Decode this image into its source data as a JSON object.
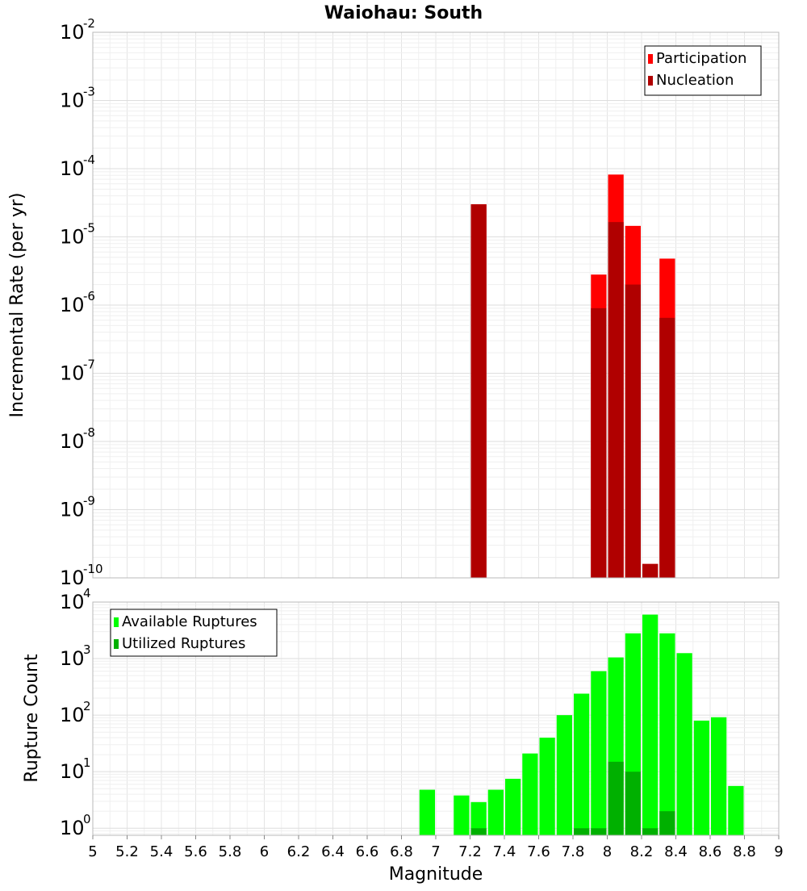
{
  "chart_data": [
    {
      "type": "bar",
      "title": "Waiohau: South",
      "xlabel": "",
      "ylabel": "Incremental Rate (per yr)",
      "yscale": "log",
      "ylim": [
        1e-10,
        0.01
      ],
      "xlim": [
        5,
        9
      ],
      "grid": true,
      "legend_position": "top-right",
      "series": [
        {
          "name": "Participation",
          "color": "#ff0000",
          "bars": [
            {
              "x": 7.25,
              "y": 3e-05
            },
            {
              "x": 7.95,
              "y": 2.8e-06
            },
            {
              "x": 8.05,
              "y": 8.2e-05
            },
            {
              "x": 8.15,
              "y": 1.45e-05
            },
            {
              "x": 8.25,
              "y": 1.6e-10
            },
            {
              "x": 8.35,
              "y": 4.8e-06
            }
          ]
        },
        {
          "name": "Nucleation",
          "color": "#b00000",
          "bars": [
            {
              "x": 7.25,
              "y": 3e-05
            },
            {
              "x": 7.95,
              "y": 9e-07
            },
            {
              "x": 8.05,
              "y": 1.65e-05
            },
            {
              "x": 8.15,
              "y": 2e-06
            },
            {
              "x": 8.25,
              "y": 1.6e-10
            },
            {
              "x": 8.35,
              "y": 6.5e-07
            }
          ]
        }
      ],
      "y_ticks": [
        {
          "base": "10",
          "exp": "-10"
        },
        {
          "base": "10",
          "exp": "-9"
        },
        {
          "base": "10",
          "exp": "-8"
        },
        {
          "base": "10",
          "exp": "-7"
        },
        {
          "base": "10",
          "exp": "-6"
        },
        {
          "base": "10",
          "exp": "-5"
        },
        {
          "base": "10",
          "exp": "-4"
        },
        {
          "base": "10",
          "exp": "-3"
        },
        {
          "base": "10",
          "exp": "-2"
        }
      ]
    },
    {
      "type": "bar",
      "title": "",
      "xlabel": "Magnitude",
      "ylabel": "Rupture Count",
      "yscale": "log",
      "ylim": [
        0.75,
        10000
      ],
      "xlim": [
        5,
        9
      ],
      "grid": true,
      "legend_position": "top-left",
      "series": [
        {
          "name": "Available Ruptures",
          "color": "#00ff00",
          "bars": [
            {
              "x": 6.95,
              "y": 4.8
            },
            {
              "x": 7.15,
              "y": 3.8
            },
            {
              "x": 7.25,
              "y": 2.9
            },
            {
              "x": 7.35,
              "y": 4.8
            },
            {
              "x": 7.45,
              "y": 7.5
            },
            {
              "x": 7.55,
              "y": 21
            },
            {
              "x": 7.65,
              "y": 40
            },
            {
              "x": 7.75,
              "y": 100
            },
            {
              "x": 7.85,
              "y": 240
            },
            {
              "x": 7.95,
              "y": 600
            },
            {
              "x": 8.05,
              "y": 1050
            },
            {
              "x": 8.15,
              "y": 2800
            },
            {
              "x": 8.25,
              "y": 6000
            },
            {
              "x": 8.35,
              "y": 2800
            },
            {
              "x": 8.45,
              "y": 1250
            },
            {
              "x": 8.55,
              "y": 80
            },
            {
              "x": 8.65,
              "y": 92
            },
            {
              "x": 8.75,
              "y": 5.6
            }
          ]
        },
        {
          "name": "Utilized Ruptures",
          "color": "#00b000",
          "bars": [
            {
              "x": 7.25,
              "y": 1
            },
            {
              "x": 7.85,
              "y": 1
            },
            {
              "x": 7.95,
              "y": 1
            },
            {
              "x": 8.05,
              "y": 15
            },
            {
              "x": 8.15,
              "y": 10
            },
            {
              "x": 8.25,
              "y": 1
            },
            {
              "x": 8.35,
              "y": 2
            }
          ]
        }
      ],
      "y_ticks": [
        {
          "base": "10",
          "exp": "0"
        },
        {
          "base": "10",
          "exp": "1"
        },
        {
          "base": "10",
          "exp": "2"
        },
        {
          "base": "10",
          "exp": "3"
        },
        {
          "base": "10",
          "exp": "4"
        }
      ],
      "x_ticks": [
        "5",
        "5.2",
        "5.4",
        "5.6",
        "5.8",
        "6",
        "6.2",
        "6.4",
        "6.6",
        "6.8",
        "7",
        "7.2",
        "7.4",
        "7.6",
        "7.8",
        "8",
        "8.2",
        "8.4",
        "8.6",
        "8.8",
        "9"
      ]
    }
  ]
}
